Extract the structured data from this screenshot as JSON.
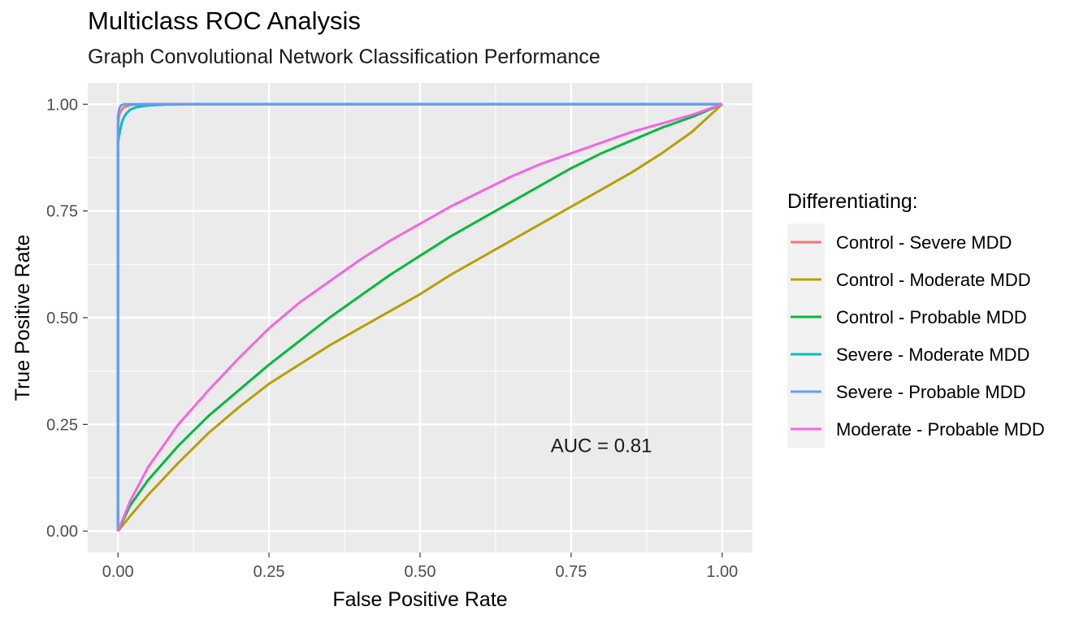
{
  "chart_data": {
    "type": "line",
    "title": "Multiclass ROC Analysis",
    "subtitle": "Graph Convolutional Network Classification Performance",
    "xlabel": "False Positive Rate",
    "ylabel": "True Positive Rate",
    "xlim": [
      -0.05,
      1.05
    ],
    "ylim": [
      -0.05,
      1.05
    ],
    "x_ticks": [
      "0.00",
      "0.25",
      "0.50",
      "0.75",
      "1.00"
    ],
    "y_ticks": [
      "0.00",
      "0.25",
      "0.50",
      "0.75",
      "1.00"
    ],
    "grid": true,
    "legend_title": "Differentiating:",
    "legend_position": "right",
    "annotation": {
      "text": "AUC = 0.81",
      "x": 0.8,
      "y": 0.2
    },
    "series": [
      {
        "name": "Control - Severe MDD",
        "color": "#F8766D",
        "x": [
          0,
          0,
          0.002,
          0.005,
          0.01,
          0.02,
          0.04,
          0.1,
          1
        ],
        "y": [
          0,
          0.95,
          0.975,
          0.985,
          0.993,
          0.998,
          1,
          1,
          1
        ]
      },
      {
        "name": "Control - Moderate MDD",
        "color": "#B79F00",
        "x": [
          0,
          0.02,
          0.05,
          0.1,
          0.15,
          0.2,
          0.25,
          0.3,
          0.35,
          0.4,
          0.45,
          0.5,
          0.55,
          0.6,
          0.65,
          0.7,
          0.75,
          0.8,
          0.85,
          0.9,
          0.95,
          1
        ],
        "y": [
          0,
          0.035,
          0.085,
          0.16,
          0.23,
          0.29,
          0.345,
          0.39,
          0.435,
          0.475,
          0.515,
          0.555,
          0.6,
          0.64,
          0.68,
          0.72,
          0.76,
          0.8,
          0.84,
          0.885,
          0.935,
          1
        ]
      },
      {
        "name": "Control - Probable MDD",
        "color": "#00BA38",
        "x": [
          0,
          0.02,
          0.05,
          0.1,
          0.15,
          0.2,
          0.25,
          0.3,
          0.35,
          0.4,
          0.45,
          0.5,
          0.55,
          0.6,
          0.65,
          0.7,
          0.75,
          0.8,
          0.85,
          0.9,
          0.95,
          1
        ],
        "y": [
          0,
          0.06,
          0.12,
          0.2,
          0.27,
          0.33,
          0.39,
          0.445,
          0.5,
          0.55,
          0.6,
          0.645,
          0.69,
          0.73,
          0.77,
          0.81,
          0.85,
          0.885,
          0.915,
          0.945,
          0.97,
          1
        ]
      },
      {
        "name": "Severe - Moderate MDD",
        "color": "#00BFC4",
        "x": [
          0,
          0,
          0.003,
          0.006,
          0.01,
          0.015,
          0.02,
          0.03,
          0.05,
          0.08,
          0.12,
          1
        ],
        "y": [
          0,
          0.91,
          0.935,
          0.955,
          0.97,
          0.98,
          0.987,
          0.993,
          0.997,
          0.999,
          1,
          1
        ]
      },
      {
        "name": "Severe - Probable MDD",
        "color": "#619CFF",
        "x": [
          0,
          0,
          0.002,
          0.005,
          0.01,
          0.02,
          1
        ],
        "y": [
          0,
          0.97,
          0.99,
          0.997,
          1,
          1,
          1
        ]
      },
      {
        "name": "Moderate - Probable MDD",
        "color": "#F564E3",
        "x": [
          0,
          0.02,
          0.05,
          0.1,
          0.15,
          0.2,
          0.25,
          0.3,
          0.35,
          0.4,
          0.45,
          0.5,
          0.55,
          0.6,
          0.65,
          0.7,
          0.75,
          0.8,
          0.85,
          0.9,
          0.95,
          1
        ],
        "y": [
          0,
          0.07,
          0.15,
          0.25,
          0.33,
          0.405,
          0.475,
          0.535,
          0.585,
          0.635,
          0.68,
          0.72,
          0.76,
          0.795,
          0.83,
          0.86,
          0.885,
          0.91,
          0.935,
          0.955,
          0.975,
          1
        ]
      }
    ]
  }
}
